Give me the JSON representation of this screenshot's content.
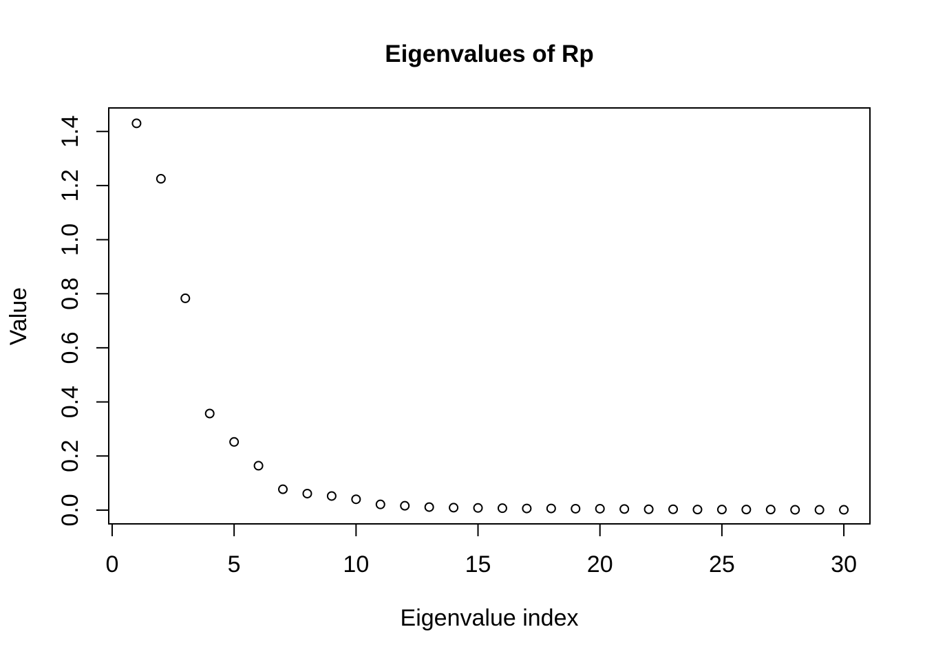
{
  "chart_data": {
    "type": "scatter",
    "title": "Eigenvalues of Rp",
    "xlabel": "Eigenvalue index",
    "ylabel": "Value",
    "x": [
      1,
      2,
      3,
      4,
      5,
      6,
      7,
      8,
      9,
      10,
      11,
      12,
      13,
      14,
      15,
      16,
      17,
      18,
      19,
      20,
      21,
      22,
      23,
      24,
      25,
      26,
      27,
      28,
      29,
      30
    ],
    "values": [
      1.43,
      1.225,
      0.783,
      0.357,
      0.252,
      0.164,
      0.077,
      0.061,
      0.052,
      0.04,
      0.021,
      0.016,
      0.011,
      0.009,
      0.008,
      0.007,
      0.006,
      0.006,
      0.005,
      0.005,
      0.004,
      0.003,
      0.003,
      0.002,
      0.002,
      0.002,
      0.002,
      0.001,
      0.001,
      0.001
    ],
    "xticks": [
      0,
      5,
      10,
      15,
      20,
      25,
      30
    ],
    "xtick_labels": [
      "0",
      "5",
      "10",
      "15",
      "20",
      "25",
      "30"
    ],
    "yticks": [
      0.0,
      0.2,
      0.4,
      0.6,
      0.8,
      1.0,
      1.2,
      1.4
    ],
    "ytick_labels": [
      "0.0",
      "0.2",
      "0.4",
      "0.6",
      "0.8",
      "1.0",
      "1.2",
      "1.4"
    ],
    "xlim": [
      -0.14,
      31.07
    ],
    "ylim": [
      -0.051,
      1.487
    ],
    "grid": false,
    "legend": null,
    "marker": "open-circle",
    "colors": {
      "points": "#000000",
      "axis": "#000000",
      "text": "#000000",
      "background": "#ffffff"
    }
  }
}
